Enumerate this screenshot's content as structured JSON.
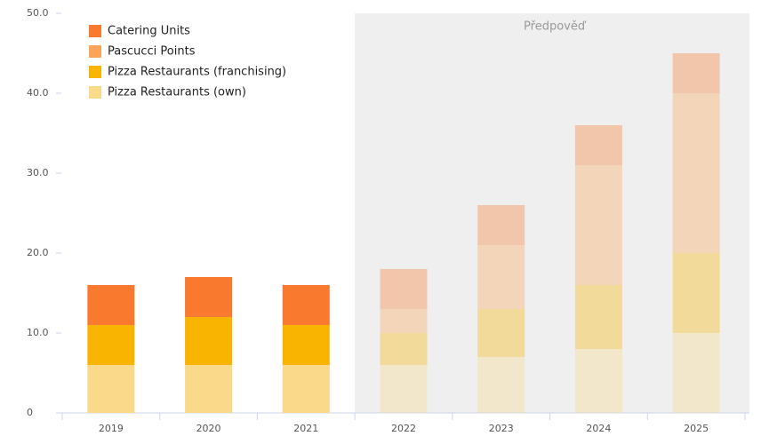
{
  "chart_data": {
    "type": "stacked_bar",
    "categories": [
      "2019",
      "2020",
      "2021",
      "2022",
      "2023",
      "2024",
      "2025"
    ],
    "series": [
      {
        "name": "Pizza Restaurants (own)",
        "color": "#fad98a",
        "values": [
          6,
          6,
          6,
          6,
          7,
          8,
          10
        ]
      },
      {
        "name": "Pizza Restaurants (franchising)",
        "color": "#f8b400",
        "values": [
          5,
          6,
          5,
          4,
          6,
          8,
          10
        ]
      },
      {
        "name": "Pascucci Points",
        "color": "#fca55a",
        "values": [
          0,
          0,
          0,
          3,
          8,
          15,
          20
        ]
      },
      {
        "name": "Catering Units",
        "color": "#f97a2e",
        "values": [
          5,
          5,
          5,
          5,
          5,
          5,
          5
        ]
      }
    ],
    "forecast": {
      "label": "Předpověď",
      "start": "2022"
    },
    "ylim": [
      0,
      50
    ],
    "yticks": [
      0,
      {
        "value": 10,
        "label": "10.0"
      },
      {
        "value": 20,
        "label": "20.0"
      },
      {
        "value": 30,
        "label": "30.0"
      },
      {
        "value": 40,
        "label": "40.0"
      },
      {
        "value": 50,
        "label": "50.0"
      }
    ],
    "legend": "top-left"
  }
}
